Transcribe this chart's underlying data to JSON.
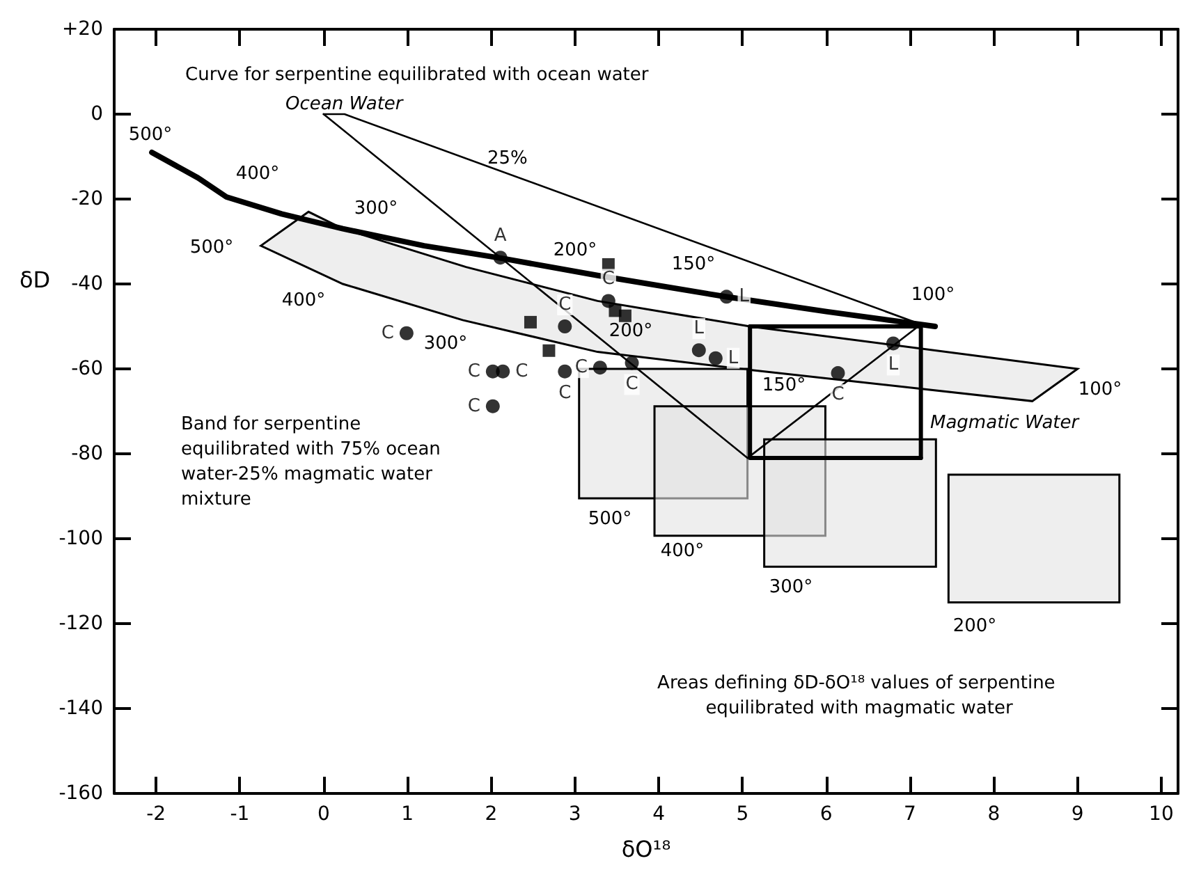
{
  "chart_data": {
    "type": "scatter",
    "xlabel": "δO¹⁸",
    "ylabel": "δD",
    "xlim": [
      -2.5,
      10.2
    ],
    "ylim": [
      -160,
      20
    ],
    "xticks": [
      -2,
      -1,
      0,
      1,
      2,
      3,
      4,
      5,
      6,
      7,
      8,
      9,
      10
    ],
    "yticks": [
      -160,
      -140,
      -120,
      -100,
      -80,
      -60,
      -40,
      -20,
      0,
      {
        "value": 20,
        "label": "+20"
      }
    ],
    "grid": false,
    "series": [
      {
        "type": "area",
        "color": "#e3e3e3",
        "x": [
          -0.75,
          -0.18,
          0.23,
          1.7,
          3.27,
          5.09,
          9.0,
          8.46,
          4.98,
          3.27,
          1.66,
          0.23,
          -0.75
        ],
        "values": [
          -31,
          -23,
          -27,
          -36,
          -44,
          -50,
          -60,
          -67.6,
          -60,
          -56,
          -48.5,
          -40,
          -31
        ]
      },
      {
        "type": "area",
        "color": "#e3e3e3",
        "x": [
          3.05,
          5.06,
          5.06,
          3.05,
          3.05
        ],
        "values": [
          -60,
          -60,
          -90.5,
          -90.5,
          -60
        ]
      },
      {
        "type": "area",
        "color": "#e3e3e3",
        "x": [
          3.95,
          5.99,
          5.99,
          3.95,
          3.95
        ],
        "values": [
          -68.8,
          -68.8,
          -99.3,
          -99.3,
          -68.8
        ]
      },
      {
        "type": "area",
        "color": "#e3e3e3",
        "x": [
          5.26,
          7.31,
          7.31,
          5.26,
          5.26
        ],
        "values": [
          -76.6,
          -76.6,
          -106.6,
          -106.6,
          -76.6
        ]
      },
      {
        "type": "area",
        "color": "#e3e3e3",
        "x": [
          7.46,
          9.5,
          9.5,
          7.46,
          7.46
        ],
        "values": [
          -84.9,
          -84.9,
          -115,
          -115,
          -84.9
        ]
      },
      {
        "type": "line",
        "color": "#000000",
        "marker": "none",
        "x": [
          -2.05,
          -1.5,
          -1.16,
          -0.5,
          0.23,
          1.2,
          2.14,
          3.27,
          4.8,
          6.0,
          7.3
        ],
        "values": [
          -9,
          -15,
          -19.5,
          -23.5,
          -27,
          -31,
          -34,
          -38,
          -43,
          -46.5,
          -50
        ]
      },
      {
        "type": "line",
        "color": "#000000",
        "marker": "none",
        "x": [
          0,
          0.25,
          7.13
        ],
        "values": [
          0,
          0,
          -49.5
        ]
      },
      {
        "type": "line",
        "color": "#000000",
        "marker": "none",
        "x": [
          0,
          5.06,
          7.13
        ],
        "values": [
          0,
          -81,
          -49.5
        ]
      },
      {
        "type": "line",
        "color": "#000000",
        "marker": "none",
        "x": [
          5.09,
          7.13,
          7.13
        ],
        "values": [
          -50,
          -50,
          -81
        ]
      },
      {
        "type": "line",
        "color": "#000000",
        "marker": "none",
        "x": [
          5.09,
          5.09,
          7.13
        ],
        "values": [
          -50,
          -81,
          -81
        ]
      },
      {
        "color": "#000000",
        "marker": "circle",
        "x": [
          2.11,
          0.99,
          2.02,
          2.14,
          2.02,
          2.88,
          2.88,
          3.4,
          3.3,
          3.68,
          4.48,
          4.68,
          4.81,
          6.14,
          6.8
        ],
        "values": [
          -33.8,
          -51.6,
          -60.6,
          -60.6,
          -68.8,
          -60.6,
          -50,
          -44,
          -59.7,
          -58.6,
          -55.6,
          -57.5,
          -43,
          -61,
          -54
        ],
        "value_labels": [
          "A",
          "C",
          "C",
          "C",
          "C",
          "C",
          "C",
          "C",
          "C",
          "C",
          "L",
          "L",
          "L",
          "C",
          "L"
        ]
      },
      {
        "color": "#000000",
        "marker": "square",
        "x": [
          3.4,
          3.48,
          3.6,
          2.47,
          2.69
        ],
        "values": [
          -35.4,
          -46.3,
          -47.5,
          -49,
          -55.7
        ]
      }
    ],
    "annotations": [
      "Curve for serpentine equilibrated with ocean water",
      "Ocean Water",
      "25%",
      "Band for serpentine equilibrated with 75% ocean water-25% magmatic water mixture",
      "Magmatic Water",
      "Areas defining δD-δO¹⁸ values of serpentine equilibrated with magmatic water",
      "500°",
      "400°",
      "300°",
      "200°",
      "150°",
      "100°",
      "500°",
      "400°",
      "300°",
      "200°",
      "150°",
      "100°",
      "500°",
      "400°",
      "300°",
      "200°"
    ]
  }
}
